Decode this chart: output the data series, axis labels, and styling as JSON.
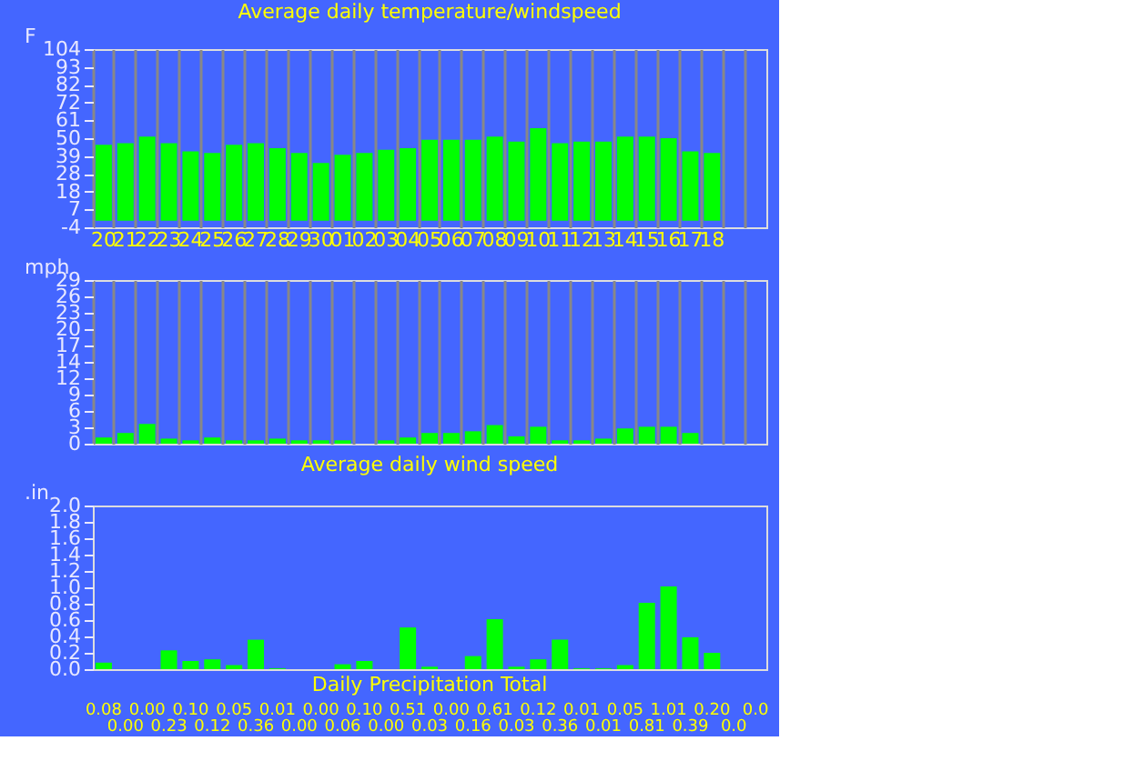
{
  "chart_data": [
    {
      "type": "bar",
      "title": "Average daily temperature/windspeed",
      "ylabel": "F",
      "categories": [
        "20",
        "21",
        "22",
        "23",
        "24",
        "25",
        "26",
        "27",
        "28",
        "29",
        "30",
        "01",
        "02",
        "03",
        "04",
        "05",
        "06",
        "07",
        "08",
        "09",
        "10",
        "11",
        "12",
        "13",
        "14",
        "15",
        "16",
        "17",
        "18",
        null,
        null
      ],
      "values": [
        46,
        47,
        51,
        47,
        42,
        41,
        46,
        47,
        44,
        41,
        35,
        40,
        41,
        43,
        44,
        49,
        49,
        49,
        51,
        48,
        56,
        47,
        48,
        48,
        51,
        51,
        50,
        42,
        41,
        null,
        null
      ],
      "color": "#00ff00",
      "ylim": [
        -4,
        104
      ],
      "yticks": [
        -4,
        {
          "value": 6.8,
          "label": "7"
        },
        {
          "value": 17.6,
          "label": "18"
        },
        {
          "value": 28.4,
          "label": "28"
        },
        {
          "value": 39.2,
          "label": "39"
        },
        50,
        {
          "value": 60.8,
          "label": "61"
        },
        {
          "value": 71.6,
          "label": "72"
        },
        {
          "value": 82.4,
          "label": "82"
        },
        {
          "value": 93.2,
          "label": "93"
        },
        104
      ],
      "grid": "x",
      "legend": false
    },
    {
      "type": "bar",
      "title": "Average daily wind speed",
      "ylabel": "mph",
      "categories": [
        "20",
        "21",
        "22",
        "23",
        "24",
        "25",
        "26",
        "27",
        "28",
        "29",
        "30",
        "01",
        "02",
        "03",
        "04",
        "05",
        "06",
        "07",
        "08",
        "09",
        "10",
        "11",
        "12",
        "13",
        "14",
        "15",
        "16",
        "17",
        "18",
        null,
        null
      ],
      "values": [
        1.1,
        1.9,
        3.5,
        0.9,
        0.6,
        1.1,
        0.6,
        0.6,
        0.9,
        0.6,
        0.6,
        0.6,
        0,
        0.6,
        1.1,
        1.9,
        1.9,
        2.2,
        3.3,
        1.3,
        3.0,
        0.6,
        0.6,
        0.9,
        2.7,
        3.0,
        3.0,
        1.9,
        0,
        null,
        null
      ],
      "color": "#00ff00",
      "ylim": [
        0,
        29
      ],
      "yticks": [
        0,
        {
          "value": 2.9,
          "label": "3"
        },
        {
          "value": 5.8,
          "label": "6"
        },
        {
          "value": 8.7,
          "label": "9"
        },
        {
          "value": 11.6,
          "label": "12"
        },
        {
          "value": 14.5,
          "label": "14"
        },
        {
          "value": 17.4,
          "label": "17"
        },
        {
          "value": 20.3,
          "label": "20"
        },
        {
          "value": 23.2,
          "label": "23"
        },
        {
          "value": 26.1,
          "label": "26"
        },
        29
      ],
      "grid": "x",
      "legend": false,
      "tick_labels": "y"
    },
    {
      "type": "bar",
      "title": "Daily Precipitation Total",
      "ylabel": ".in",
      "categories": [
        "20",
        "21",
        "22",
        "23",
        "24",
        "25",
        "26",
        "27",
        "28",
        "29",
        "30",
        "01",
        "02",
        "03",
        "04",
        "05",
        "06",
        "07",
        "08",
        "09",
        "10",
        "11",
        "12",
        "13",
        "14",
        "15",
        "16",
        "17",
        "18",
        null,
        null
      ],
      "values": [
        0.08,
        0.0,
        0.0,
        0.23,
        0.1,
        0.12,
        0.05,
        0.36,
        0.01,
        0.0,
        0.0,
        0.06,
        0.1,
        0.0,
        0.51,
        0.03,
        0.0,
        0.16,
        0.61,
        0.03,
        0.12,
        0.36,
        0.01,
        0.01,
        0.05,
        0.81,
        1.01,
        0.39,
        0.2,
        0.0,
        0.0
      ],
      "value_labels": [
        "0.08",
        "0.00",
        "0.00",
        "0.23",
        "0.10",
        "0.12",
        "0.05",
        "0.36",
        "0.01",
        "0.00",
        "0.00",
        "0.06",
        "0.10",
        "0.00",
        "0.51",
        "0.03",
        "0.00",
        "0.16",
        "0.61",
        "0.03",
        "0.12",
        "0.36",
        "0.01",
        "0.01",
        "0.05",
        "0.81",
        "1.01",
        "0.39",
        "0.20",
        "0.0",
        "0.0"
      ],
      "color": "#00ff00",
      "ylim": [
        0,
        2.0
      ],
      "yticks": [
        {
          "value": 0,
          "label": "0.0"
        },
        0.2,
        0.4,
        0.6,
        0.8,
        {
          "value": 1,
          "label": "1.0"
        },
        1.2,
        1.4,
        1.6,
        1.8,
        {
          "value": 2,
          "label": "2.0"
        }
      ],
      "grid": "x",
      "legend": false,
      "tick_labels": "y"
    }
  ]
}
